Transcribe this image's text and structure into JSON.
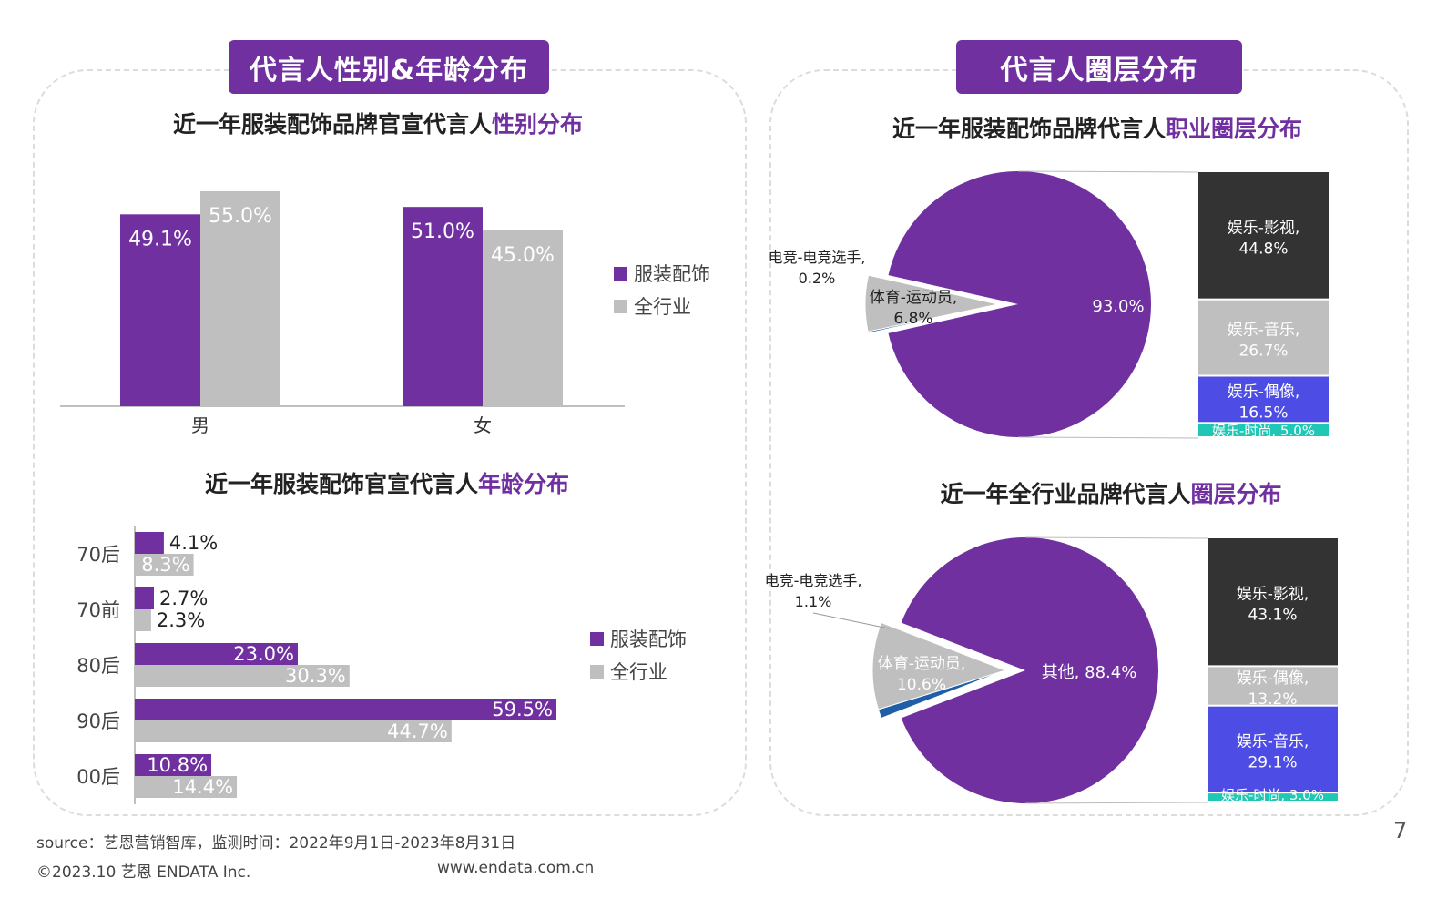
{
  "colors": {
    "purple": "#7030a0",
    "grey": "#bfbfbf",
    "black": "#333333",
    "blue": "#4d4de6",
    "teal": "#1ec8b4",
    "darkblue": "#1f5fa8"
  },
  "left_panel": {
    "tag": "代言人性别&年龄分布"
  },
  "right_panel": {
    "tag": "代言人圈层分布"
  },
  "chart_titles": {
    "gender": {
      "pre": "近一年服装配饰品牌官宣代言人",
      "hl": "性别分布"
    },
    "age": {
      "pre": "近一年服装配饰官宣代言人",
      "hl": "年龄分布"
    },
    "pie1": {
      "pre": "近一年服装配饰品牌代言人",
      "hl": "职业圈层分布"
    },
    "pie2": {
      "pre": "近一年全行业品牌代言人",
      "hl": "圈层分布"
    }
  },
  "chart_data": [
    {
      "type": "bar",
      "categories": [
        "男",
        "女"
      ],
      "series": [
        {
          "name": "服装配饰",
          "values": [
            49.1,
            51.0
          ],
          "labels": [
            "49.1%",
            "51.0%"
          ]
        },
        {
          "name": "全行业",
          "values": [
            55.0,
            45.0
          ],
          "labels": [
            "55.0%",
            "45.0%"
          ]
        }
      ],
      "ylim": [
        0,
        60
      ],
      "legend": "right"
    },
    {
      "type": "bar",
      "orientation": "horizontal",
      "categories": [
        "70后",
        "70前",
        "80后",
        "90后",
        "00后"
      ],
      "series": [
        {
          "name": "服装配饰",
          "values": [
            4.1,
            2.7,
            23.0,
            59.5,
            10.8
          ],
          "labels": [
            "4.1%",
            "2.7%",
            "23.0%",
            "59.5%",
            "10.8%"
          ]
        },
        {
          "name": "全行业",
          "values": [
            8.3,
            2.3,
            30.3,
            44.7,
            14.4
          ],
          "labels": [
            "8.3%",
            "2.3%",
            "30.3%",
            "44.7%",
            "14.4%"
          ]
        }
      ],
      "legend": "right"
    },
    {
      "type": "pie",
      "slices": [
        {
          "label": "93.0%",
          "value": 93.0
        },
        {
          "label": "电竞-电竞选手, 0.2%",
          "value": 0.2
        },
        {
          "label": "体育-运动员, 6.8%",
          "value": 6.8
        }
      ],
      "breakdown": [
        {
          "line1": "娱乐-影视,",
          "line2": "44.8%",
          "value": 44.8
        },
        {
          "line1": "娱乐-音乐,",
          "line2": "26.7%",
          "value": 26.7
        },
        {
          "line1": "娱乐-偶像,",
          "line2": "16.5%",
          "value": 16.5
        },
        {
          "line1": "娱乐-时尚, 5.0%",
          "line2": "",
          "value": 5.0
        }
      ]
    },
    {
      "type": "pie",
      "slices": [
        {
          "label": "其他, 88.4%",
          "value": 88.4
        },
        {
          "label": "电竞-电竞选手, 1.1%",
          "value": 1.1
        },
        {
          "label": "体育-运动员, 10.6%",
          "value": 10.6
        }
      ],
      "breakdown": [
        {
          "line1": "娱乐-影视,",
          "line2": "43.1%",
          "value": 43.1
        },
        {
          "line1": "娱乐-偶像,",
          "line2": "13.2%",
          "value": 13.2
        },
        {
          "line1": "娱乐-音乐,",
          "line2": "29.1%",
          "value": 29.1
        },
        {
          "line1": "娱乐-时尚, 3.0%",
          "line2": "",
          "value": 3.0
        }
      ]
    }
  ],
  "footer": {
    "source": "source：艺恩营销智库，监测时间：2022年9月1日-2023年8月31日",
    "copyright": "©2023.10  艺恩 ENDATA Inc.",
    "url": "www.endata.com.cn",
    "page": "7"
  }
}
